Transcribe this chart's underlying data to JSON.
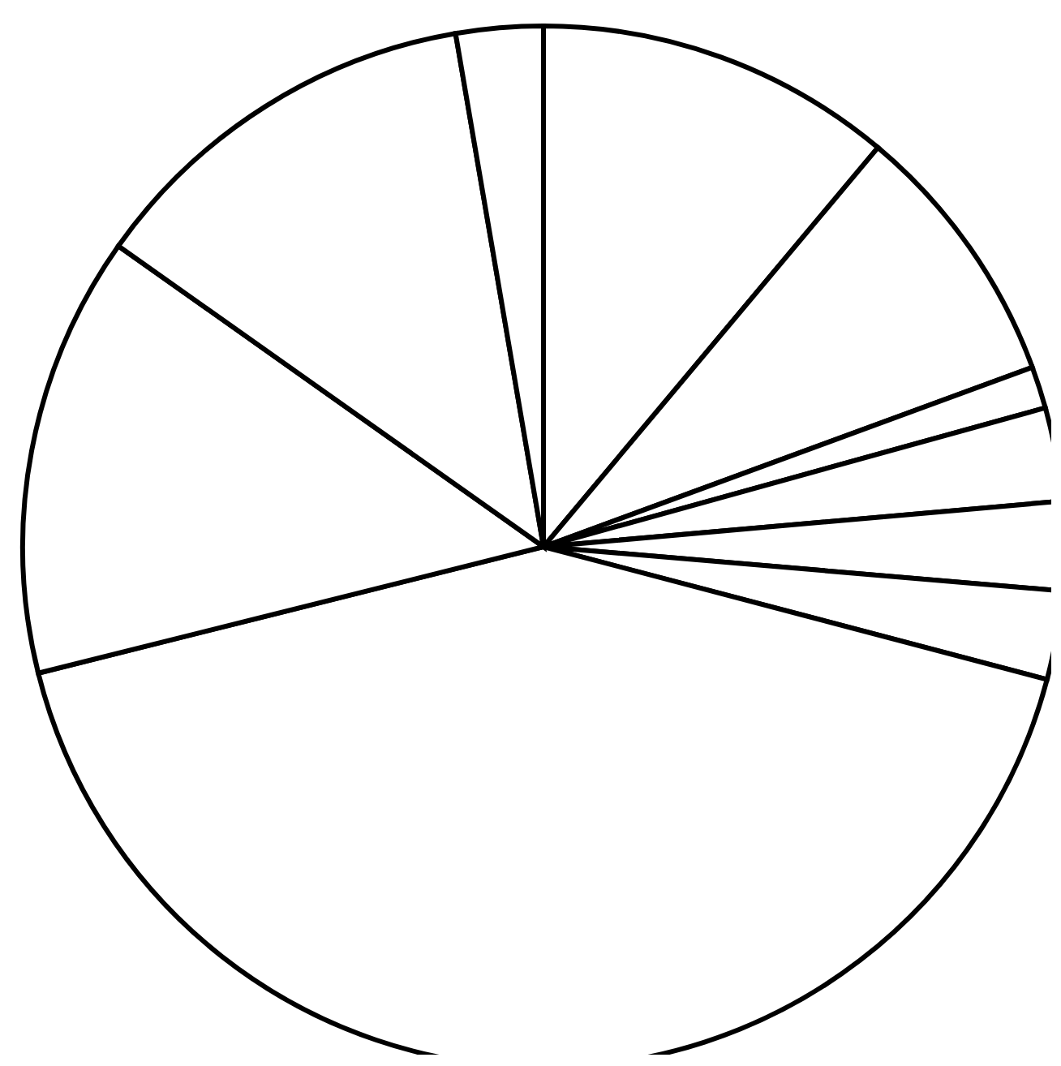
{
  "chart_data": {
    "type": "pie",
    "categories": [
      null,
      null,
      null,
      null,
      null,
      null,
      null,
      null,
      null,
      null
    ],
    "values": [
      11.1,
      8.3,
      1.3,
      2.9,
      2.75,
      2.75,
      42.0,
      13.7,
      12.5,
      2.7
    ],
    "colors": [
      "#ffffff",
      "#ffffff",
      "#ffffff",
      "#ffffff",
      "#ffffff",
      "#ffffff",
      "#ffffff",
      "#ffffff",
      "#ffffff",
      "#ffffff"
    ]
  }
}
